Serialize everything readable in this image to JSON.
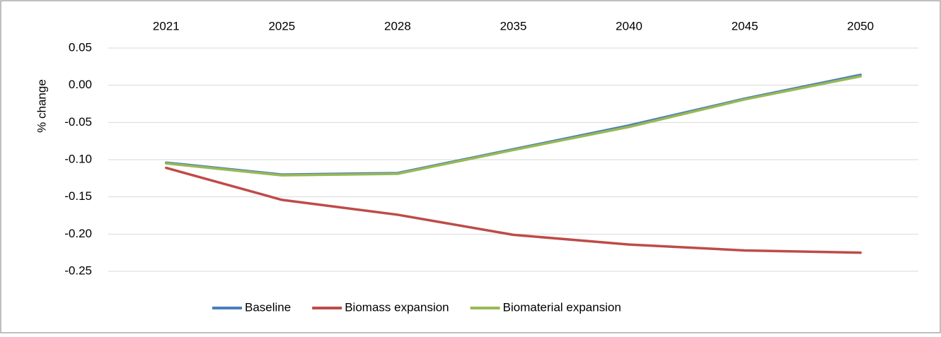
{
  "chart_data": {
    "type": "line",
    "y_label": "% change",
    "categories": [
      "2021",
      "2025",
      "2028",
      "2035",
      "2040",
      "2045",
      "2050"
    ],
    "series": [
      {
        "name": "Baseline",
        "color": "#4a7ebb",
        "values": [
          -0.104,
          -0.12,
          -0.118,
          -0.086,
          -0.054,
          -0.018,
          0.014
        ]
      },
      {
        "name": "Biomass expansion",
        "color": "#be4b48",
        "values": [
          -0.111,
          -0.154,
          -0.174,
          -0.201,
          -0.214,
          -0.222,
          -0.225
        ]
      },
      {
        "name": "Biomaterial expansion",
        "color": "#98b954",
        "values": [
          -0.105,
          -0.121,
          -0.119,
          -0.087,
          -0.056,
          -0.019,
          0.012
        ]
      }
    ],
    "ylim": [
      -0.25,
      0.05
    ],
    "yticks": [
      {
        "value": 0.05,
        "label": "0.05"
      },
      {
        "value": 0,
        "label": "0.00"
      },
      {
        "value": -0.05,
        "label": "-0.05"
      },
      {
        "value": -0.1,
        "label": "-0.10"
      },
      {
        "value": -0.15,
        "label": "-0.15"
      },
      {
        "value": -0.2,
        "label": "-0.20"
      },
      {
        "value": -0.25,
        "label": "-0.25"
      }
    ],
    "grid": true,
    "legend": "bottom"
  }
}
